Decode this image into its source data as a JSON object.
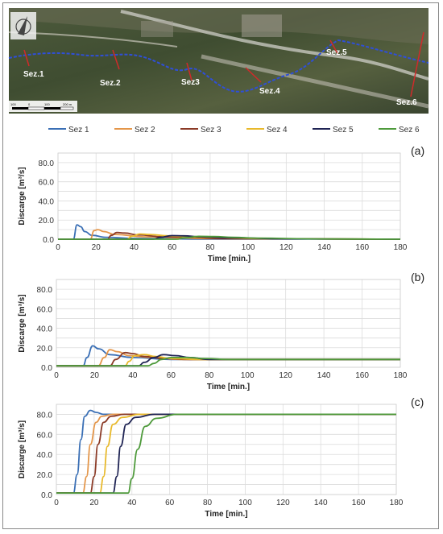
{
  "map": {
    "sections": [
      "Sez.1",
      "Sez.2",
      "Sez3",
      "Sez.4",
      "Sez.5",
      "Sez.6"
    ],
    "scale_labels": [
      "100",
      "0",
      "100",
      "200 m"
    ]
  },
  "colors": {
    "Sez 1": "#3a6fb5",
    "Sez 2": "#e4964a",
    "Sez 3": "#8b3a26",
    "Sez 4": "#e8b92b",
    "Sez 5": "#1f2454",
    "Sez 6": "#4e9a3b"
  },
  "legend": [
    "Sez 1",
    "Sez 2",
    "Sez 3",
    "Sez 4",
    "Sez 5",
    "Sez 6"
  ],
  "chart_data": [
    {
      "type": "line",
      "panel_label": "(a)",
      "xlabel": "Time [min.]",
      "ylabel": "Discarge [m³/s]",
      "xlim": [
        0,
        180
      ],
      "ylim": [
        0,
        90
      ],
      "xticks": [
        0,
        20,
        40,
        60,
        80,
        100,
        120,
        140,
        160,
        180
      ],
      "yticks": [
        "0.0",
        "20.0",
        "40.0",
        "60.0",
        "80.0"
      ],
      "grid": true,
      "series": [
        {
          "name": "Sez 1",
          "x": [
            0,
            8,
            10,
            12,
            14,
            18,
            25,
            40,
            70,
            180
          ],
          "y": [
            0,
            0,
            15,
            13,
            8,
            4,
            2,
            0.8,
            0.2,
            0
          ]
        },
        {
          "name": "Sez 2",
          "x": [
            0,
            17,
            19,
            21,
            24,
            30,
            45,
            80,
            180
          ],
          "y": [
            0,
            0,
            9,
            10,
            8,
            5,
            2.5,
            0.7,
            0
          ]
        },
        {
          "name": "Sez 3",
          "x": [
            0,
            26,
            28,
            31,
            35,
            42,
            55,
            90,
            180
          ],
          "y": [
            0,
            0,
            4,
            7,
            6.5,
            4.5,
            2.5,
            0.6,
            0
          ]
        },
        {
          "name": "Sez 4",
          "x": [
            0,
            36,
            39,
            43,
            48,
            58,
            75,
            110,
            180
          ],
          "y": [
            0,
            0,
            3,
            5.5,
            5,
            3.5,
            2,
            0.5,
            0
          ]
        },
        {
          "name": "Sez 5",
          "x": [
            0,
            50,
            54,
            60,
            66,
            75,
            90,
            120,
            180
          ],
          "y": [
            0,
            0,
            2,
            3.8,
            3.5,
            2.5,
            1.5,
            0.4,
            0
          ]
        },
        {
          "name": "Sez 6",
          "x": [
            0,
            62,
            67,
            74,
            82,
            92,
            105,
            135,
            180
          ],
          "y": [
            0,
            0,
            1.5,
            3,
            2.8,
            2,
            1.2,
            0.3,
            0
          ]
        }
      ]
    },
    {
      "type": "line",
      "panel_label": "(b)",
      "xlabel": "Time [min.]",
      "ylabel": "Discarge [m³/s]",
      "xlim": [
        0,
        180
      ],
      "ylim": [
        0,
        90
      ],
      "xticks": [
        0,
        20,
        40,
        60,
        80,
        100,
        120,
        140,
        160,
        180
      ],
      "yticks": [
        "0.0",
        "20.0",
        "40.0",
        "60.0",
        "80.0"
      ],
      "grid": true,
      "series": [
        {
          "name": "Sez 1",
          "x": [
            0,
            14,
            16,
            19,
            22,
            28,
            40,
            60,
            180
          ],
          "y": [
            1.5,
            1.5,
            10,
            22,
            19,
            13,
            10,
            8,
            8
          ]
        },
        {
          "name": "Sez 2",
          "x": [
            0,
            22,
            25,
            28,
            32,
            38,
            50,
            65,
            180
          ],
          "y": [
            1.5,
            1.5,
            10,
            18,
            16,
            12,
            10,
            8,
            8
          ]
        },
        {
          "name": "Sez 3",
          "x": [
            0,
            28,
            31,
            36,
            40,
            46,
            56,
            70,
            180
          ],
          "y": [
            1.5,
            1.5,
            8,
            15,
            14,
            11,
            9,
            8,
            8
          ]
        },
        {
          "name": "Sez 4",
          "x": [
            0,
            36,
            38,
            41,
            46,
            52,
            60,
            75,
            180
          ],
          "y": [
            1.5,
            1.5,
            6,
            12,
            13,
            11,
            9,
            8,
            8
          ]
        },
        {
          "name": "Sez 5",
          "x": [
            0,
            43,
            46,
            51,
            56,
            62,
            70,
            80,
            180
          ],
          "y": [
            1.5,
            1.5,
            5,
            10,
            13,
            12,
            10,
            8,
            8
          ]
        },
        {
          "name": "Sez 6",
          "x": [
            0,
            48,
            51,
            55,
            60,
            68,
            78,
            90,
            180
          ],
          "y": [
            1.5,
            1.5,
            4,
            8,
            10,
            10,
            9,
            8,
            8
          ]
        }
      ]
    },
    {
      "type": "line",
      "panel_label": "(c)",
      "xlabel": "Time [min.]",
      "ylabel": "Discarge [m³/s]",
      "xlim": [
        0,
        180
      ],
      "ylim": [
        0,
        90
      ],
      "xticks": [
        0,
        20,
        40,
        60,
        80,
        100,
        120,
        140,
        160,
        180
      ],
      "yticks": [
        "0.0",
        "20.0",
        "40.0",
        "60.0",
        "80.0"
      ],
      "grid": true,
      "series": [
        {
          "name": "Sez 1",
          "x": [
            0,
            9,
            11,
            13,
            15,
            18,
            21,
            25,
            180
          ],
          "y": [
            1.5,
            1.5,
            20,
            55,
            78,
            84,
            82,
            80,
            80
          ]
        },
        {
          "name": "Sez 2",
          "x": [
            0,
            14,
            16,
            18,
            21,
            24,
            30,
            180
          ],
          "y": [
            1.5,
            1.5,
            18,
            50,
            72,
            78,
            80,
            80
          ]
        },
        {
          "name": "Sez 3",
          "x": [
            0,
            18,
            20,
            22,
            25,
            29,
            36,
            180
          ],
          "y": [
            1.5,
            1.5,
            18,
            50,
            72,
            78,
            80,
            80
          ]
        },
        {
          "name": "Sez 4",
          "x": [
            0,
            23,
            25,
            27,
            30,
            35,
            44,
            180
          ],
          "y": [
            1.5,
            1.5,
            18,
            48,
            70,
            77,
            80,
            80
          ]
        },
        {
          "name": "Sez 5",
          "x": [
            0,
            30,
            32,
            34,
            37,
            42,
            52,
            180
          ],
          "y": [
            1.5,
            1.5,
            18,
            48,
            70,
            77,
            80,
            80
          ]
        },
        {
          "name": "Sez 6",
          "x": [
            0,
            38,
            40,
            43,
            47,
            53,
            64,
            180
          ],
          "y": [
            1.5,
            1.5,
            16,
            45,
            68,
            76,
            80,
            80
          ]
        }
      ]
    }
  ]
}
